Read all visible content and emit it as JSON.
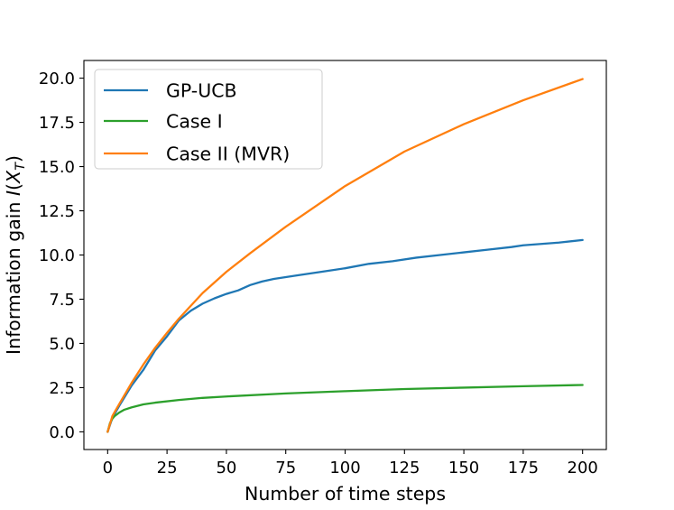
{
  "chart_data": {
    "type": "line",
    "title": "",
    "xlabel": "Number of time steps",
    "ylabel": "Information gain I(X_T)",
    "ylabel_parts": {
      "prefix": "Information gain ",
      "func": "I",
      "open": "(",
      "var": "X",
      "sub": "T",
      "close": ")"
    },
    "xlim": [
      -10,
      210
    ],
    "ylim": [
      -1.0,
      21.0
    ],
    "xticks": [
      0,
      25,
      50,
      75,
      100,
      125,
      150,
      175,
      200
    ],
    "xtick_labels": [
      "0",
      "25",
      "50",
      "75",
      "100",
      "125",
      "150",
      "175",
      "200"
    ],
    "yticks": [
      0.0,
      2.5,
      5.0,
      7.5,
      10.0,
      12.5,
      15.0,
      17.5,
      20.0
    ],
    "ytick_labels": [
      "0.0",
      "2.5",
      "5.0",
      "7.5",
      "10.0",
      "12.5",
      "15.0",
      "17.5",
      "20.0"
    ],
    "grid": false,
    "legend": {
      "position": "top-left",
      "entries": [
        "GP-UCB",
        "Case I",
        "Case II (MVR)"
      ]
    },
    "series": [
      {
        "name": "GP-UCB",
        "color": "#1f77b4",
        "x": [
          0,
          2,
          5,
          10,
          15,
          20,
          25,
          30,
          35,
          40,
          45,
          50,
          55,
          60,
          65,
          70,
          75,
          80,
          90,
          100,
          110,
          120,
          130,
          140,
          150,
          160,
          170,
          175,
          180,
          190,
          200
        ],
        "y": [
          0.0,
          0.8,
          1.5,
          2.6,
          3.5,
          4.6,
          5.4,
          6.3,
          6.85,
          7.25,
          7.55,
          7.8,
          8.0,
          8.3,
          8.5,
          8.65,
          8.75,
          8.85,
          9.05,
          9.25,
          9.5,
          9.65,
          9.85,
          10.0,
          10.15,
          10.3,
          10.45,
          10.55,
          10.6,
          10.7,
          10.85
        ]
      },
      {
        "name": "Case I",
        "color": "#2ca02c",
        "x": [
          0,
          1,
          2,
          3,
          5,
          7,
          10,
          15,
          20,
          30,
          40,
          50,
          75,
          100,
          125,
          150,
          175,
          200
        ],
        "y": [
          0.0,
          0.5,
          0.75,
          0.9,
          1.1,
          1.25,
          1.38,
          1.55,
          1.65,
          1.8,
          1.92,
          2.0,
          2.17,
          2.3,
          2.42,
          2.5,
          2.58,
          2.65
        ]
      },
      {
        "name": "Case II (MVR)",
        "color": "#ff7f0e",
        "x": [
          0,
          2,
          5,
          10,
          15,
          20,
          25,
          30,
          40,
          50,
          60,
          75,
          100,
          125,
          150,
          175,
          200
        ],
        "y": [
          0.0,
          0.9,
          1.6,
          2.75,
          3.8,
          4.75,
          5.6,
          6.4,
          7.85,
          9.05,
          10.1,
          11.6,
          13.9,
          15.85,
          17.4,
          18.75,
          19.95
        ]
      }
    ]
  }
}
